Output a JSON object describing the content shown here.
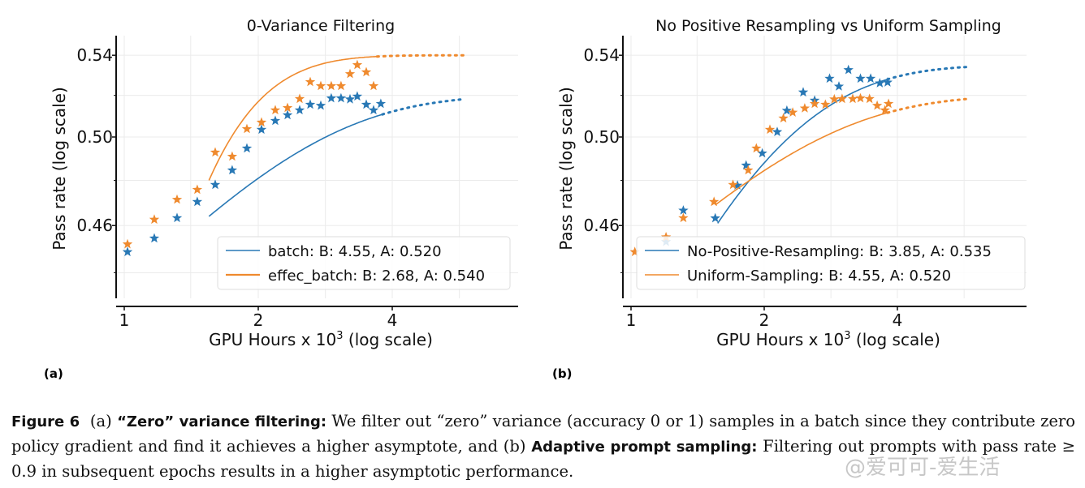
{
  "colors": {
    "blue": "#2878b5",
    "orange": "#ef8a2e",
    "grid": "#ebebeb",
    "axis": "#111111"
  },
  "chart_data": [
    {
      "type": "scatter",
      "title": "0-Variance Filtering",
      "xlabel": "GPU Hours x 10",
      "xlabel_sup": "3",
      "xlabel_suffix": " (log scale)",
      "ylabel": "Pass rate (log scale)",
      "xscale": "log2",
      "yscale": "log",
      "xlim": [
        0.96,
        6.1
      ],
      "ylim": [
        0.43,
        0.555
      ],
      "xticks": [
        1,
        2,
        4
      ],
      "xtick_labels": [
        "1",
        "2",
        "4"
      ],
      "yticks": [
        0.46,
        0.5,
        0.54
      ],
      "ytick_labels": [
        "0.46",
        "0.50",
        "0.54"
      ],
      "grid": true,
      "legend_position": "lower-right",
      "series": [
        {
          "name": "batch: B: 4.55, A: 0.520",
          "color_key": "blue",
          "A": 0.52,
          "B": 4.55,
          "fit_start": 1.55,
          "fit_end": 3.8,
          "extrap_end": 5.8,
          "fit_y_start": 0.464,
          "points": [
            [
              1.017,
              0.4487
            ],
            [
              1.168,
              0.4545
            ],
            [
              1.314,
              0.4633
            ],
            [
              1.459,
              0.4704
            ],
            [
              1.601,
              0.478
            ],
            [
              1.748,
              0.4846
            ],
            [
              1.886,
              0.4947
            ],
            [
              2.034,
              0.5035
            ],
            [
              2.184,
              0.5077
            ],
            [
              2.327,
              0.5104
            ],
            [
              2.478,
              0.5128
            ],
            [
              2.617,
              0.5155
            ],
            [
              2.764,
              0.515
            ],
            [
              2.918,
              0.5186
            ],
            [
              3.069,
              0.5186
            ],
            [
              3.215,
              0.5181
            ],
            [
              3.338,
              0.5195
            ],
            [
              3.497,
              0.5155
            ],
            [
              3.632,
              0.5128
            ],
            [
              3.77,
              0.5159
            ]
          ]
        },
        {
          "name": "effec_batch: B: 2.68, A: 0.540",
          "color_key": "orange",
          "A": 0.54,
          "B": 2.68,
          "fit_start": 1.55,
          "fit_end": 3.7,
          "extrap_end": 5.8,
          "fit_y_start": 0.48,
          "points": [
            [
              1.017,
              0.452
            ],
            [
              1.168,
              0.4626
            ],
            [
              1.314,
              0.4714
            ],
            [
              1.459,
              0.4758
            ],
            [
              1.601,
              0.4928
            ],
            [
              1.748,
              0.4909
            ],
            [
              1.886,
              0.5038
            ],
            [
              2.034,
              0.5069
            ],
            [
              2.184,
              0.5128
            ],
            [
              2.327,
              0.5139
            ],
            [
              2.478,
              0.5183
            ],
            [
              2.617,
              0.5266
            ],
            [
              2.764,
              0.5246
            ],
            [
              2.918,
              0.5246
            ],
            [
              3.069,
              0.5246
            ],
            [
              3.215,
              0.5306
            ],
            [
              3.338,
              0.5351
            ],
            [
              3.497,
              0.5315
            ],
            [
              3.632,
              0.5246
            ]
          ]
        }
      ]
    },
    {
      "type": "scatter",
      "title": "No Positive Resampling vs Uniform Sampling",
      "xlabel": "GPU Hours x 10",
      "xlabel_sup": "3",
      "xlabel_suffix": " (log scale)",
      "ylabel": "Pass rate (log scale)",
      "xscale": "log2",
      "yscale": "log",
      "xlim": [
        0.96,
        6.1
      ],
      "ylim": [
        0.43,
        0.555
      ],
      "xticks": [
        1,
        2,
        4
      ],
      "xtick_labels": [
        "1",
        "2",
        "4"
      ],
      "yticks": [
        0.46,
        0.5,
        0.54
      ],
      "ytick_labels": [
        "0.46",
        "0.50",
        "0.54"
      ],
      "grid": true,
      "legend_position": "lower-right",
      "series": [
        {
          "name": "No-Positive-Resampling: B: 3.85, A: 0.535",
          "color_key": "blue",
          "A": 0.535,
          "B": 3.85,
          "fit_start": 1.57,
          "fit_end": 3.8,
          "extrap_end": 5.8,
          "fit_y_start": 0.461,
          "points": [
            [
              1.2,
              0.453
            ],
            [
              1.313,
              0.4666
            ],
            [
              1.55,
              0.4632
            ],
            [
              1.74,
              0.4777
            ],
            [
              1.82,
              0.4868
            ],
            [
              1.98,
              0.4924
            ],
            [
              2.14,
              0.5024
            ],
            [
              2.25,
              0.5126
            ],
            [
              2.45,
              0.5215
            ],
            [
              2.6,
              0.5175
            ],
            [
              2.81,
              0.5283
            ],
            [
              2.95,
              0.5244
            ],
            [
              3.1,
              0.5326
            ],
            [
              3.3,
              0.5283
            ],
            [
              3.48,
              0.5283
            ],
            [
              3.65,
              0.526
            ],
            [
              3.8,
              0.5264
            ]
          ]
        },
        {
          "name": "Uniform-Sampling: B: 4.55, A: 0.520",
          "color_key": "orange",
          "A": 0.52,
          "B": 4.55,
          "fit_start": 1.55,
          "fit_end": 3.8,
          "extrap_end": 5.8,
          "fit_y_start": 0.469,
          "points": [
            [
              1.02,
              0.4487
            ],
            [
              1.2,
              0.455
            ],
            [
              1.313,
              0.4633
            ],
            [
              1.54,
              0.4704
            ],
            [
              1.7,
              0.478
            ],
            [
              1.84,
              0.4846
            ],
            [
              1.92,
              0.4947
            ],
            [
              2.06,
              0.5035
            ],
            [
              2.21,
              0.5089
            ],
            [
              2.32,
              0.5117
            ],
            [
              2.47,
              0.5137
            ],
            [
              2.6,
              0.5159
            ],
            [
              2.75,
              0.5155
            ],
            [
              2.88,
              0.5181
            ],
            [
              3.0,
              0.5183
            ],
            [
              3.17,
              0.5183
            ],
            [
              3.3,
              0.5186
            ],
            [
              3.46,
              0.5183
            ],
            [
              3.6,
              0.515
            ],
            [
              3.75,
              0.5128
            ],
            [
              3.82,
              0.5159
            ]
          ]
        }
      ]
    }
  ],
  "subfigure_labels": [
    "(a)",
    "(b)"
  ],
  "caption": {
    "figure": "Figure 6",
    "part_a_label": "(a)",
    "part_a_title": "“Zero” variance filtering:",
    "part_a_text": " We filter out “zero” variance (accuracy 0 or 1) samples in a batch since they contribute zero policy gradient and find it achieves a higher asymptote, and ",
    "part_b_label": "(b)",
    "part_b_title": "Adaptive prompt sampling:",
    "part_b_text": " Filtering out prompts with pass rate ≥ 0.9 in subsequent epochs results in a higher asymptotic performance."
  },
  "watermark": "@爱可可-爱生活"
}
